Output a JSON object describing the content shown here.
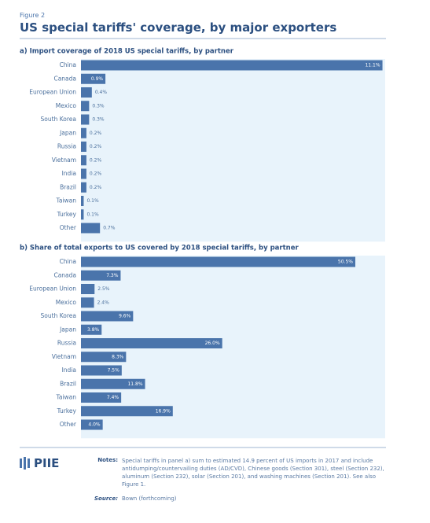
{
  "figure_label": "Figure 2",
  "title": "US special tariffs' coverage, by major exporters",
  "chart_data": [
    {
      "type": "bar",
      "orientation": "horizontal",
      "title": "a) Import coverage of 2018 US special tariffs, by partner",
      "categories": [
        "China",
        "Canada",
        "European Union",
        "Mexico",
        "South Korea",
        "Japan",
        "Russia",
        "Vietnam",
        "India",
        "Brazil",
        "Taiwan",
        "Turkey",
        "Other"
      ],
      "values": [
        11.1,
        0.9,
        0.4,
        0.3,
        0.3,
        0.2,
        0.2,
        0.2,
        0.2,
        0.2,
        0.1,
        0.1,
        0.7
      ],
      "value_labels": [
        "11.1%",
        "0.9%",
        "0.4%",
        "0.3%",
        "0.3%",
        "0.2%",
        "0.2%",
        "0.2%",
        "0.2%",
        "0.2%",
        "0.1%",
        "0.1%",
        "0.7%"
      ],
      "xlim": [
        0,
        11.2
      ],
      "color": "#4a74ab",
      "background": "#e8f3fb"
    },
    {
      "type": "bar",
      "orientation": "horizontal",
      "title": "b) Share of total exports to US covered by 2018 special tariffs, by partner",
      "categories": [
        "China",
        "Canada",
        "European Union",
        "Mexico",
        "South Korea",
        "Japan",
        "Russia",
        "Vietnam",
        "India",
        "Brazil",
        "Taiwan",
        "Turkey",
        "Other"
      ],
      "values": [
        50.5,
        7.3,
        2.5,
        2.4,
        9.6,
        3.8,
        26.0,
        8.3,
        7.5,
        11.8,
        7.4,
        16.9,
        4.0
      ],
      "value_labels": [
        "50.5%",
        "7.3%",
        "2.5%",
        "2.4%",
        "9.6%",
        "3.8%",
        "26.0%",
        "8.3%",
        "7.5%",
        "11.8%",
        "7.4%",
        "16.9%",
        "4.0%"
      ],
      "xlim": [
        0,
        56
      ],
      "color": "#4a74ab",
      "background": "#e8f3fb"
    }
  ],
  "logo": "PIIE",
  "notes_label": "Notes:",
  "notes": "Special tariffs in panel a) sum to estimated 14.9 percent of US imports in 2017 and include antidumping/countervailing duties (AD/CVD), Chinese goods (Section 301), steel (Section 232), aluminum (Section 232), solar (Section 201), and washing machines (Section 201). See also Figure 1.",
  "source_label": "Source:",
  "source": "Bown (forthcoming)"
}
